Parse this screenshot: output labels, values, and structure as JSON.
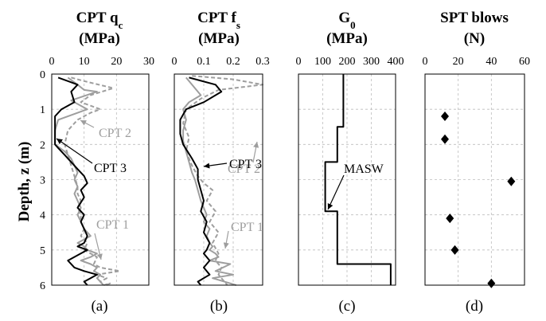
{
  "y_axis": {
    "label": "Depth, z (m)",
    "ticks": [
      "0",
      "1",
      "2",
      "3",
      "4",
      "5",
      "6"
    ],
    "range": [
      0,
      6
    ],
    "inverted": true
  },
  "panels": [
    {
      "title_line1_main": "CPT q",
      "title_line1_sub": "c",
      "title_line2": "(MPa)",
      "x_ticks": [
        "0",
        "10",
        "20",
        "30"
      ],
      "xlim": [
        0,
        30
      ],
      "label": "(a)",
      "annotations": [
        {
          "text": "CPT 2",
          "color": "#9e9e9e",
          "series": "CPT 2"
        },
        {
          "text": "CPT 3",
          "color": "#000000",
          "series": "CPT 3"
        },
        {
          "text": "CPT 1",
          "color": "#9e9e9e",
          "series": "CPT 1"
        }
      ]
    },
    {
      "title_line1_main": "CPT f",
      "title_line1_sub": "s",
      "title_line2": "(MPa)",
      "x_ticks": [
        "0",
        "0.1",
        "0.2",
        "0.3"
      ],
      "xlim": [
        0,
        0.3
      ],
      "label": "(b)",
      "annotations": [
        {
          "text": "CPT 2",
          "color": "#9e9e9e",
          "series": "CPT 2"
        },
        {
          "text": "CPT 3",
          "color": "#000000",
          "series": "CPT 3"
        },
        {
          "text": "CPT 1",
          "color": "#9e9e9e",
          "series": "CPT 1"
        }
      ]
    },
    {
      "title_line1_main": "G",
      "title_line1_sub": "0",
      "title_line2": "(MPa)",
      "x_ticks": [
        "0",
        "100",
        "200",
        "300",
        "400"
      ],
      "xlim": [
        0,
        400
      ],
      "label": "(c)",
      "annotations": [
        {
          "text": "MASW",
          "color": "#000000",
          "series": "MASW"
        }
      ]
    },
    {
      "title_line1_main": "SPT blows",
      "title_line1_sub": "",
      "title_line2": "(N)",
      "x_ticks": [
        "0",
        "20",
        "40",
        "60"
      ],
      "xlim": [
        0,
        60
      ],
      "label": "(d)",
      "annotations": []
    }
  ],
  "chart_data": [
    {
      "type": "line",
      "title": "CPT qc (MPa)",
      "xlabel": "CPT qc (MPa)",
      "ylabel": "Depth, z (m)",
      "xlim": [
        0,
        30
      ],
      "ylim": [
        6,
        0
      ],
      "grid": true,
      "series": [
        {
          "name": "CPT 1",
          "color": "#9e9e9e",
          "dash": false,
          "x": [
            5,
            8,
            10,
            14,
            6,
            11,
            2,
            1,
            1,
            4,
            6,
            7,
            8,
            7,
            8,
            7,
            8,
            9,
            8,
            9,
            10,
            12,
            8,
            10,
            11,
            14,
            12,
            9,
            12,
            14,
            13,
            15,
            14,
            15,
            16
          ],
          "y": [
            0.1,
            0.3,
            0.45,
            0.5,
            0.75,
            1.0,
            1.3,
            1.6,
            2.0,
            2.2,
            2.4,
            2.6,
            2.8,
            3.0,
            3.2,
            3.4,
            3.6,
            3.8,
            4.0,
            4.2,
            4.4,
            4.6,
            4.8,
            4.9,
            5.0,
            5.1,
            5.2,
            5.3,
            5.4,
            5.5,
            5.6,
            5.7,
            5.8,
            5.9,
            6.0
          ]
        },
        {
          "name": "CPT 2",
          "color": "#9e9e9e",
          "dash": true,
          "x": [
            6,
            10,
            19,
            12,
            9,
            15,
            12,
            8,
            5,
            4,
            5,
            6,
            7,
            8,
            8,
            9,
            8,
            9,
            9,
            10,
            9,
            11,
            10,
            12,
            14,
            13,
            15,
            21,
            14,
            17,
            15,
            16,
            18,
            17
          ],
          "y": [
            0.1,
            0.2,
            0.4,
            0.6,
            0.8,
            1.0,
            1.1,
            1.3,
            1.6,
            2.0,
            2.3,
            2.6,
            2.9,
            3.2,
            3.4,
            3.6,
            3.8,
            4.0,
            4.2,
            4.4,
            4.6,
            4.8,
            5.0,
            5.1,
            5.2,
            5.4,
            5.5,
            5.6,
            5.7,
            5.8,
            5.9,
            6.0,
            5.95,
            6.0
          ]
        },
        {
          "name": "CPT 3",
          "color": "#000000",
          "dash": false,
          "x": [
            2,
            5,
            8,
            6,
            7,
            3,
            1,
            1,
            1,
            1,
            2,
            4,
            6,
            8,
            10,
            11,
            9,
            10,
            8,
            10,
            9,
            10,
            11,
            10,
            8,
            11,
            5,
            7,
            10,
            14,
            12,
            10,
            11
          ],
          "y": [
            0.1,
            0.2,
            0.3,
            0.5,
            0.8,
            1.0,
            1.2,
            1.5,
            1.8,
            2.0,
            2.1,
            2.3,
            2.5,
            2.7,
            2.9,
            3.1,
            3.3,
            3.5,
            3.8,
            4.0,
            4.2,
            4.4,
            4.6,
            4.8,
            4.9,
            5.0,
            5.3,
            5.5,
            5.6,
            5.7,
            5.8,
            5.9,
            6.0
          ]
        }
      ]
    },
    {
      "type": "line",
      "title": "CPT fs (MPa)",
      "xlabel": "CPT fs (MPa)",
      "ylabel": "Depth, z (m)",
      "xlim": [
        0,
        0.3
      ],
      "ylim": [
        6,
        0
      ],
      "grid": true,
      "series": [
        {
          "name": "CPT 1",
          "color": "#9e9e9e",
          "dash": false,
          "x": [
            0.04,
            0.09,
            0.05,
            0.03,
            0.04,
            0.03,
            0.03,
            0.04,
            0.05,
            0.06,
            0.07,
            0.08,
            0.09,
            0.1,
            0.11,
            0.1,
            0.12,
            0.11,
            0.12,
            0.13,
            0.12,
            0.14,
            0.15,
            0.12,
            0.19,
            0.14,
            0.2,
            0.13,
            0.17,
            0.21
          ],
          "y": [
            0.1,
            0.6,
            0.8,
            1.0,
            1.3,
            1.6,
            1.9,
            2.2,
            2.5,
            2.8,
            3.0,
            3.3,
            3.6,
            3.8,
            4.0,
            4.2,
            4.4,
            4.6,
            4.8,
            4.9,
            5.0,
            5.1,
            5.2,
            5.3,
            5.4,
            5.6,
            5.7,
            5.8,
            5.9,
            6.0
          ]
        },
        {
          "name": "CPT 2",
          "color": "#9e9e9e",
          "dash": true,
          "x": [
            0.06,
            0.2,
            0.3,
            0.15,
            0.09,
            0.04,
            0.03,
            0.05,
            0.04,
            0.06,
            0.08,
            0.1,
            0.13,
            0.11,
            0.14,
            0.12,
            0.15,
            0.13,
            0.15,
            0.14,
            0.16,
            0.15,
            0.17,
            0.18
          ],
          "y": [
            0.05,
            0.15,
            0.3,
            0.45,
            0.7,
            1.0,
            1.4,
            1.8,
            2.2,
            2.6,
            2.9,
            3.1,
            3.3,
            3.6,
            3.9,
            4.2,
            4.5,
            4.8,
            5.1,
            5.3,
            5.5,
            5.7,
            5.9,
            6.0
          ]
        },
        {
          "name": "CPT 3",
          "color": "#000000",
          "dash": false,
          "x": [
            0.05,
            0.14,
            0.16,
            0.1,
            0.04,
            0.02,
            0.02,
            0.03,
            0.06,
            0.08,
            0.08,
            0.09,
            0.1,
            0.09,
            0.11,
            0.1,
            0.12,
            0.11,
            0.1,
            0.12,
            0.11,
            0.1,
            0.12,
            0.1,
            0.08,
            0.09
          ],
          "y": [
            0.1,
            0.3,
            0.5,
            0.8,
            1.0,
            1.3,
            1.7,
            2.0,
            2.4,
            2.7,
            3.0,
            3.3,
            3.6,
            3.9,
            4.2,
            4.5,
            4.8,
            5.0,
            5.1,
            5.3,
            5.4,
            5.5,
            5.7,
            5.8,
            5.9,
            6.0
          ]
        }
      ]
    },
    {
      "type": "line",
      "title": "G0 (MPa)",
      "xlabel": "G0 (MPa)",
      "ylabel": "Depth, z (m)",
      "xlim": [
        0,
        400
      ],
      "ylim": [
        6,
        0
      ],
      "grid": true,
      "series": [
        {
          "name": "MASW",
          "color": "#000000",
          "dash": false,
          "x": [
            185,
            185,
            160,
            160,
            110,
            110,
            160,
            160,
            380,
            380
          ],
          "y": [
            0,
            1.5,
            1.5,
            2.5,
            2.5,
            3.9,
            3.9,
            5.4,
            5.4,
            6.0
          ]
        }
      ]
    },
    {
      "type": "scatter",
      "title": "SPT blows (N)",
      "xlabel": "SPT blows (N)",
      "ylabel": "Depth, z (m)",
      "xlim": [
        0,
        60
      ],
      "ylim": [
        6,
        0
      ],
      "grid": true,
      "series": [
        {
          "name": "SPT",
          "color": "#000000",
          "x": [
            12,
            12,
            52,
            15,
            18,
            40
          ],
          "y": [
            1.2,
            1.85,
            3.05,
            4.1,
            5.0,
            5.95
          ]
        }
      ]
    }
  ]
}
